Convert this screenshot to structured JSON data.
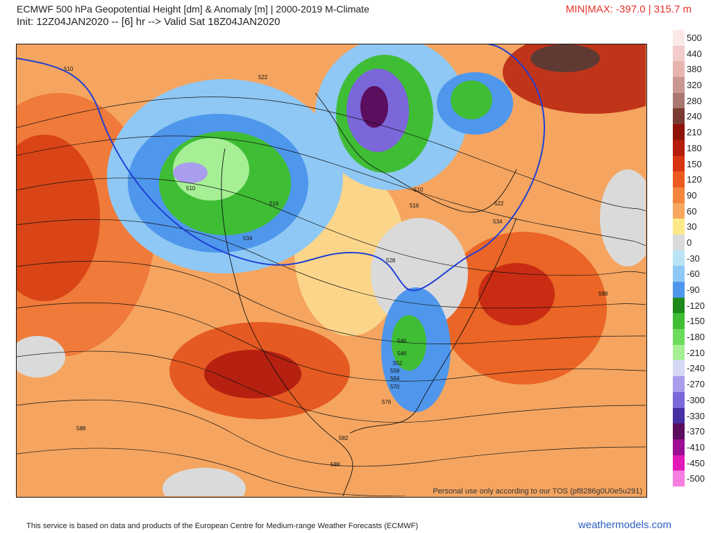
{
  "header": {
    "title": "ECMWF 500 hPa Geopotential Height [dm] & Anomaly [m] | 2000-2019 M-Climate",
    "subtitle": "Init: 12Z04JAN2020 -- [6] hr --> Valid Sat 18Z04JAN2020",
    "minmax": "MIN|MAX: -397.0 | 315.7 m"
  },
  "map": {
    "tos_notice": "Personal use only according to our TOS (pf8286g0U0e5u291)",
    "contour_labels": [
      "510",
      "522",
      "510",
      "534",
      "516",
      "510",
      "516",
      "522",
      "534",
      "528",
      "546",
      "546",
      "552",
      "558",
      "564",
      "570",
      "576",
      "588",
      "588",
      "582",
      "588"
    ]
  },
  "colorbar": {
    "levels": [
      {
        "label": "500",
        "color": "#fde8e8"
      },
      {
        "label": "440",
        "color": "#f4cccc"
      },
      {
        "label": "380",
        "color": "#e6b5b0"
      },
      {
        "label": "320",
        "color": "#c99792"
      },
      {
        "label": "280",
        "color": "#a87870"
      },
      {
        "label": "240",
        "color": "#7a3b33"
      },
      {
        "label": "210",
        "color": "#8e1208"
      },
      {
        "label": "180",
        "color": "#b51d0c"
      },
      {
        "label": "150",
        "color": "#d93412"
      },
      {
        "label": "120",
        "color": "#ec5a1f"
      },
      {
        "label": "90",
        "color": "#f4853b"
      },
      {
        "label": "60",
        "color": "#f8a85e"
      },
      {
        "label": "30",
        "color": "#fde98a"
      },
      {
        "label": "0",
        "color": "#dadada"
      },
      {
        "label": "-30",
        "color": "#b9e4f5"
      },
      {
        "label": "-60",
        "color": "#8fc8f4"
      },
      {
        "label": "-90",
        "color": "#4f97ec"
      },
      {
        "label": "-120",
        "color": "#1d8a1a"
      },
      {
        "label": "-150",
        "color": "#3fbd35"
      },
      {
        "label": "-180",
        "color": "#6cdb5c"
      },
      {
        "label": "-210",
        "color": "#a6ef95"
      },
      {
        "label": "-240",
        "color": "#d6d8f4"
      },
      {
        "label": "-270",
        "color": "#a99ded"
      },
      {
        "label": "-300",
        "color": "#7b67d9"
      },
      {
        "label": "-330",
        "color": "#4730a5"
      },
      {
        "label": "-370",
        "color": "#5b0d5e"
      },
      {
        "label": "-410",
        "color": "#9c0f92"
      },
      {
        "label": "-450",
        "color": "#e11ab8"
      },
      {
        "label": "-500",
        "color": "#f57fe0"
      }
    ]
  },
  "footer": {
    "attribution": "This service is based on data and products of the European Centre for Medium-range Weather Forecasts (ECMWF)",
    "brand": "weathermodels.com"
  }
}
